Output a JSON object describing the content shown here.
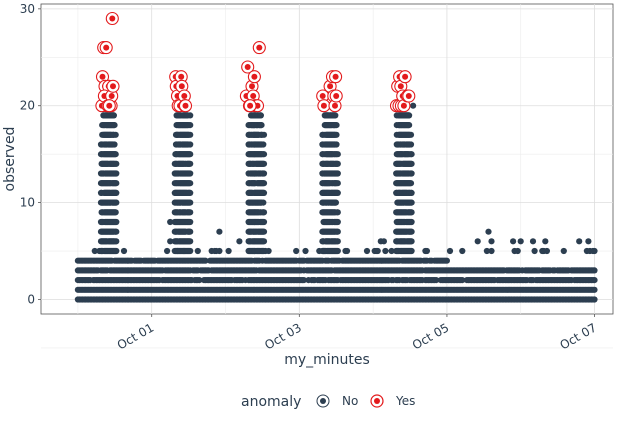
{
  "chart_data": {
    "type": "scatter",
    "title": "",
    "xlabel": "my_minutes",
    "ylabel": "observed",
    "xlim": [
      "2017-09-29T12:00",
      "2017-10-07T06:00"
    ],
    "ylim": [
      -1.5,
      30.5
    ],
    "x_ticks": [
      {
        "value": "2017-10-01",
        "label": "Oct 01"
      },
      {
        "value": "2017-10-03",
        "label": "Oct 03"
      },
      {
        "value": "2017-10-05",
        "label": "Oct 05"
      },
      {
        "value": "2017-10-07",
        "label": "Oct 07"
      }
    ],
    "y_ticks": [
      0,
      10,
      20,
      30
    ],
    "grid": true,
    "legend": {
      "title": "anomaly",
      "position": "bottom",
      "entries": [
        {
          "label": "No",
          "color": "#2c3e50"
        },
        {
          "label": "Yes",
          "color": "#e31a1c"
        }
      ]
    },
    "x_range": [
      "2017-09-30T00:00",
      "2017-10-07T00:00"
    ],
    "bursts": [
      {
        "start": "2017-09-30T07:30",
        "end": "2017-09-30T12:30",
        "normal_max": 19
      },
      {
        "start": "2017-10-01T07:30",
        "end": "2017-10-01T12:30",
        "normal_max": 19
      },
      {
        "start": "2017-10-02T07:30",
        "end": "2017-10-02T12:30",
        "normal_max": 19
      },
      {
        "start": "2017-10-03T07:30",
        "end": "2017-10-03T12:30",
        "normal_max": 19
      },
      {
        "start": "2017-10-04T07:30",
        "end": "2017-10-04T12:30",
        "normal_max": 19
      }
    ],
    "series": [
      {
        "name": "Yes",
        "color": "#e31a1c",
        "points": [
          {
            "x": "2017-09-30T08:00",
            "y": 23
          },
          {
            "x": "2017-09-30T08:24",
            "y": 26
          },
          {
            "x": "2017-09-30T08:48",
            "y": 22
          },
          {
            "x": "2017-09-30T09:00",
            "y": 21
          },
          {
            "x": "2017-09-30T09:12",
            "y": 26
          },
          {
            "x": "2017-09-30T09:24",
            "y": 20
          },
          {
            "x": "2017-09-30T09:36",
            "y": 21
          },
          {
            "x": "2017-09-30T10:00",
            "y": 22
          },
          {
            "x": "2017-09-30T07:48",
            "y": 20
          },
          {
            "x": "2017-09-30T08:36",
            "y": 21
          },
          {
            "x": "2017-09-30T09:48",
            "y": 20
          },
          {
            "x": "2017-09-30T10:48",
            "y": 20
          },
          {
            "x": "2017-09-30T11:00",
            "y": 21
          },
          {
            "x": "2017-09-30T11:12",
            "y": 29
          },
          {
            "x": "2017-09-30T11:24",
            "y": 22
          },
          {
            "x": "2017-09-30T10:12",
            "y": 20
          },
          {
            "x": "2017-10-01T07:48",
            "y": 23
          },
          {
            "x": "2017-10-01T08:00",
            "y": 22
          },
          {
            "x": "2017-10-01T08:24",
            "y": 21
          },
          {
            "x": "2017-10-01T08:36",
            "y": 20
          },
          {
            "x": "2017-10-01T09:12",
            "y": 20
          },
          {
            "x": "2017-10-01T09:36",
            "y": 23
          },
          {
            "x": "2017-10-01T09:48",
            "y": 22
          },
          {
            "x": "2017-10-01T10:36",
            "y": 21
          },
          {
            "x": "2017-10-01T10:48",
            "y": 20
          },
          {
            "x": "2017-10-01T11:00",
            "y": 20
          },
          {
            "x": "2017-10-02T06:48",
            "y": 21
          },
          {
            "x": "2017-10-02T07:12",
            "y": 24
          },
          {
            "x": "2017-10-02T07:48",
            "y": 20
          },
          {
            "x": "2017-10-02T08:36",
            "y": 22
          },
          {
            "x": "2017-10-02T09:00",
            "y": 21
          },
          {
            "x": "2017-10-02T09:24",
            "y": 23
          },
          {
            "x": "2017-10-02T09:36",
            "y": 20
          },
          {
            "x": "2017-10-02T10:24",
            "y": 20
          },
          {
            "x": "2017-10-02T11:00",
            "y": 26
          },
          {
            "x": "2017-10-02T08:00",
            "y": 20
          },
          {
            "x": "2017-10-03T07:36",
            "y": 21
          },
          {
            "x": "2017-10-03T08:00",
            "y": 20
          },
          {
            "x": "2017-10-03T10:00",
            "y": 22
          },
          {
            "x": "2017-10-03T10:48",
            "y": 23
          },
          {
            "x": "2017-10-03T11:12",
            "y": 21
          },
          {
            "x": "2017-10-03T11:36",
            "y": 20
          },
          {
            "x": "2017-10-03T11:48",
            "y": 23
          },
          {
            "x": "2017-10-03T12:00",
            "y": 21
          },
          {
            "x": "2017-10-04T07:36",
            "y": 20
          },
          {
            "x": "2017-10-04T08:00",
            "y": 22
          },
          {
            "x": "2017-10-04T08:24",
            "y": 20
          },
          {
            "x": "2017-10-04T08:36",
            "y": 23
          },
          {
            "x": "2017-10-04T09:00",
            "y": 22
          },
          {
            "x": "2017-10-04T09:12",
            "y": 20
          },
          {
            "x": "2017-10-04T09:36",
            "y": 21
          },
          {
            "x": "2017-10-04T10:00",
            "y": 20
          },
          {
            "x": "2017-10-04T10:24",
            "y": 23
          },
          {
            "x": "2017-10-04T11:12",
            "y": 21
          },
          {
            "x": "2017-10-04T11:36",
            "y": 21
          }
        ]
      },
      {
        "name": "No",
        "color": "#2c3e50",
        "points": [
          {
            "x": "2017-10-01T06:00",
            "y": 8
          },
          {
            "x": "2017-10-01T06:00",
            "y": 6
          },
          {
            "x": "2017-10-01T22:00",
            "y": 7
          },
          {
            "x": "2017-10-02T04:30",
            "y": 6
          },
          {
            "x": "2017-10-02T23:00",
            "y": 5
          },
          {
            "x": "2017-10-04T02:30",
            "y": 6
          },
          {
            "x": "2017-10-04T03:30",
            "y": 6
          },
          {
            "x": "2017-10-05T10:00",
            "y": 6
          },
          {
            "x": "2017-10-05T13:30",
            "y": 7
          },
          {
            "x": "2017-10-05T14:30",
            "y": 6
          },
          {
            "x": "2017-10-05T21:30",
            "y": 6
          },
          {
            "x": "2017-10-06T00:00",
            "y": 6
          },
          {
            "x": "2017-10-06T04:00",
            "y": 6
          },
          {
            "x": "2017-10-06T08:00",
            "y": 6
          },
          {
            "x": "2017-10-06T19:00",
            "y": 6
          },
          {
            "x": "2017-10-06T22:00",
            "y": 6
          },
          {
            "x": "2017-10-04T13:00",
            "y": 20
          }
        ]
      }
    ]
  }
}
